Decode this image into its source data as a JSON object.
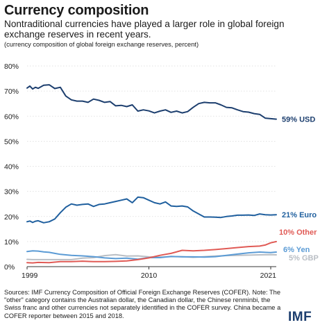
{
  "title": "Currency composition",
  "subtitle": "Nontraditional currencies have played a larger role in global foreign exchange reserves in recent years.",
  "note": "(currency composition of global foreign exchange reserves, percent)",
  "sources": "Sources: IMF Currency Composition of Official Foreign Exchange Reserves (COFER). Note: The \"other\" category contains the Australian dollar, the Canadian dollar, the Chinese renminbi, the Swiss franc and other currencies not separately identified in the COFER survey. China became a COFER reporter between 2015 and 2018.",
  "logo": "IMF",
  "chart_data": {
    "type": "line",
    "title": "Currency composition",
    "ylim": [
      0,
      80
    ],
    "y_ticks": [
      "0%",
      "10%",
      "20%",
      "30%",
      "40%",
      "50%",
      "60%",
      "70%",
      "80%"
    ],
    "x_ticks": [
      "1999",
      "2010",
      "2021"
    ],
    "xlim": [
      1999,
      2021.5
    ],
    "grid": true,
    "series": [
      {
        "name": "59% USD",
        "color": "#1c3e6e",
        "x": [
          1999.0,
          1999.25,
          1999.5,
          1999.75,
          2000,
          2000.5,
          2001,
          2001.5,
          2002,
          2002.5,
          2003,
          2003.5,
          2004,
          2004.5,
          2005,
          2005.5,
          2006,
          2006.5,
          2007,
          2007.5,
          2008,
          2008.5,
          2009,
          2009.5,
          2010,
          2010.5,
          2011,
          2011.5,
          2012,
          2012.5,
          2013,
          2013.5,
          2014,
          2014.5,
          2015,
          2015.5,
          2016,
          2016.5,
          2017,
          2017.5,
          2018,
          2018.5,
          2019,
          2019.5,
          2020,
          2020.5,
          2021,
          2021.5
        ],
        "values": [
          71.2,
          72.0,
          70.8,
          71.5,
          71.1,
          72.3,
          72.5,
          71.0,
          71.5,
          68.0,
          66.5,
          66.0,
          66.0,
          65.5,
          66.8,
          66.3,
          65.5,
          65.8,
          64.1,
          64.3,
          63.8,
          64.5,
          62.0,
          62.5,
          62.1,
          61.3,
          62.0,
          62.5,
          61.5,
          62.0,
          61.3,
          61.8,
          63.5,
          65.0,
          65.5,
          65.3,
          65.3,
          64.5,
          63.5,
          63.3,
          62.5,
          61.8,
          61.6,
          61.0,
          60.7,
          59.2,
          59.0,
          58.8
        ]
      },
      {
        "name": "21% Euro",
        "color": "#1f5f9e",
        "x": [
          1999.0,
          1999.25,
          1999.5,
          1999.75,
          2000,
          2000.5,
          2001,
          2001.5,
          2002,
          2002.5,
          2003,
          2003.5,
          2004,
          2004.5,
          2005,
          2005.5,
          2006,
          2006.5,
          2007,
          2007.5,
          2008,
          2008.5,
          2009,
          2009.5,
          2010,
          2010.5,
          2011,
          2011.5,
          2012,
          2012.5,
          2013,
          2013.5,
          2014,
          2014.5,
          2015,
          2015.5,
          2016,
          2016.5,
          2017,
          2017.5,
          2018,
          2018.5,
          2019,
          2019.5,
          2020,
          2020.5,
          2021,
          2021.5
        ],
        "values": [
          17.9,
          18.2,
          17.6,
          18.1,
          18.3,
          17.5,
          17.9,
          19.0,
          21.5,
          23.7,
          25.0,
          24.5,
          24.8,
          25.0,
          24.0,
          24.8,
          25.0,
          25.5,
          26.0,
          26.5,
          27.0,
          25.5,
          27.7,
          27.5,
          26.5,
          25.5,
          25.0,
          25.8,
          24.2,
          24.0,
          24.2,
          23.8,
          22.2,
          21.0,
          19.8,
          19.8,
          19.7,
          19.6,
          20.0,
          20.2,
          20.5,
          20.5,
          20.6,
          20.4,
          21.0,
          20.7,
          20.6,
          20.7
        ]
      },
      {
        "name": "10% Other",
        "color": "#e05a55",
        "x": [
          1999.0,
          1999.5,
          2000,
          2001,
          2002,
          2003,
          2004,
          2005,
          2006,
          2007,
          2008,
          2009,
          2010,
          2011,
          2012,
          2013,
          2014,
          2015,
          2016,
          2017,
          2018,
          2019,
          2020,
          2020.5,
          2021,
          2021.5
        ],
        "values": [
          1.6,
          1.5,
          1.7,
          1.6,
          2.0,
          2.0,
          2.2,
          2.0,
          2.0,
          2.1,
          2.3,
          2.8,
          3.5,
          4.5,
          5.3,
          6.5,
          6.3,
          6.5,
          6.8,
          7.2,
          7.6,
          8.0,
          8.2,
          8.6,
          9.5,
          10.0
        ]
      },
      {
        "name": "6% Yen",
        "color": "#5b9bd5",
        "x": [
          1999.0,
          1999.5,
          2000,
          2000.5,
          2001,
          2001.5,
          2002,
          2003,
          2004,
          2005,
          2006,
          2007,
          2008,
          2009,
          2010,
          2011,
          2012,
          2013,
          2014,
          2015,
          2016,
          2017,
          2018,
          2019,
          2020,
          2021,
          2021.5
        ],
        "values": [
          6.0,
          6.3,
          6.2,
          5.9,
          5.7,
          5.3,
          4.9,
          4.5,
          4.3,
          4.0,
          3.5,
          3.2,
          3.4,
          3.0,
          3.6,
          3.6,
          4.1,
          3.9,
          3.9,
          3.8,
          4.0,
          4.5,
          5.0,
          5.5,
          5.8,
          5.6,
          5.8
        ]
      },
      {
        "name": "5% GBP",
        "color": "#b9bec4",
        "x": [
          1999.0,
          1999.5,
          2000,
          2001,
          2002,
          2003,
          2004,
          2005,
          2006,
          2007,
          2008,
          2009,
          2010,
          2011,
          2012,
          2013,
          2014,
          2015,
          2016,
          2017,
          2018,
          2019,
          2020,
          2021,
          2021.5
        ],
        "values": [
          2.9,
          2.8,
          2.8,
          2.8,
          2.8,
          2.8,
          3.4,
          3.6,
          4.4,
          4.8,
          4.2,
          4.3,
          3.9,
          3.8,
          4.0,
          4.0,
          3.7,
          4.0,
          4.2,
          4.4,
          4.5,
          4.6,
          4.7,
          4.8,
          4.7
        ]
      }
    ]
  }
}
